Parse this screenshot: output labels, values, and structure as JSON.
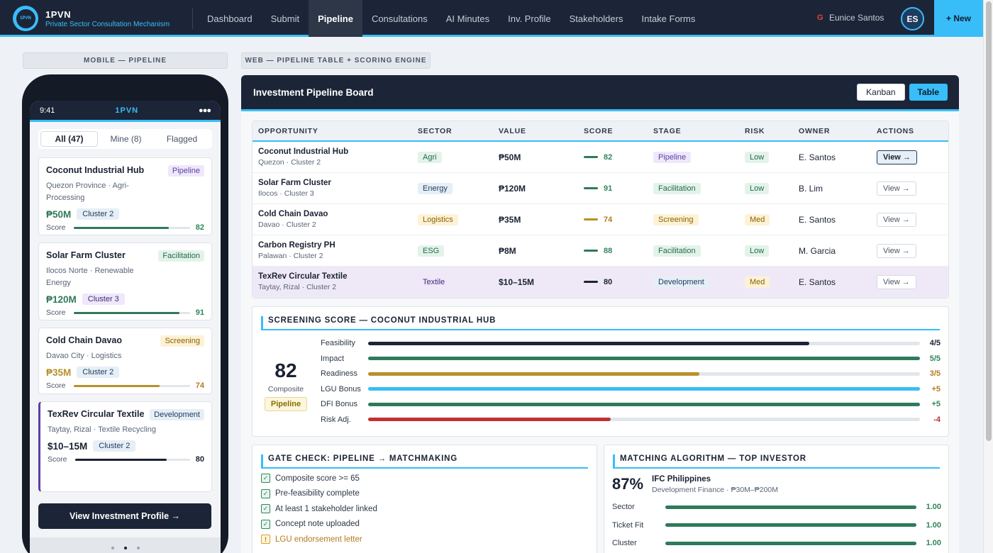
{
  "nav": {
    "logo_text": "1PVN",
    "brand": "1PVN",
    "subtitle": "Private Sector Consultation Mechanism",
    "links": [
      "Dashboard",
      "Submit",
      "Pipeline",
      "Consultations",
      "AI Minutes",
      "Inv. Profile",
      "Stakeholders",
      "Intake Forms"
    ],
    "active_link": "Pipeline",
    "user_name": "Eunice Santos",
    "avatar_initials": "ES",
    "new_button": "+ New"
  },
  "labels": {
    "mobile": "MOBILE — PIPELINE",
    "web": "WEB — PIPELINE TABLE + SCORING ENGINE"
  },
  "mobile": {
    "time": "9:41",
    "brand": "1PVN",
    "status_dots": "●●●",
    "tabs": [
      "All (47)",
      "Mine (8)",
      "Flagged"
    ],
    "score_label": "Score",
    "cards": [
      {
        "title": "Coconut Industrial Hub",
        "badge": "Pipeline",
        "sub": "Quezon Province · Agri-Processing",
        "value": "₱50M",
        "cluster": "Cluster 2",
        "score": 82
      },
      {
        "title": "Solar Farm Cluster",
        "badge": "Facilitation",
        "sub": "Ilocos Norte · Renewable Energy",
        "value": "₱120M",
        "cluster": "Cluster 3",
        "score": 91
      },
      {
        "title": "Cold Chain Davao",
        "badge": "Screening",
        "sub": "Davao City · Logistics",
        "value": "₱35M",
        "cluster": "Cluster 2",
        "score": 74
      },
      {
        "title": "TexRev Circular Textile",
        "badge": "Development",
        "sub": "Taytay, Rizal · Textile Recycling",
        "value": "$10–15M",
        "cluster": "Cluster 2",
        "score": 80
      }
    ],
    "cta": "View Investment Profile →"
  },
  "web": {
    "title": "Investment Pipeline Board",
    "view_kanban": "Kanban",
    "view_table": "Table",
    "columns": [
      "OPPORTUNITY",
      "SECTOR",
      "VALUE",
      "SCORE",
      "STAGE",
      "RISK",
      "OWNER",
      "ACTIONS"
    ],
    "rows": [
      {
        "name": "Coconut Industrial Hub",
        "loc": "Quezon · Cluster 2",
        "sector": "Agri",
        "value": "₱50M",
        "score": 82,
        "stage": "Pipeline",
        "risk": "Low",
        "owner": "E. Santos",
        "action": "View →"
      },
      {
        "name": "Solar Farm Cluster",
        "loc": "Ilocos · Cluster 3",
        "sector": "Energy",
        "value": "₱120M",
        "score": 91,
        "stage": "Facilitation",
        "risk": "Low",
        "owner": "B. Lim",
        "action": "View →"
      },
      {
        "name": "Cold Chain Davao",
        "loc": "Davao · Cluster 2",
        "sector": "Logistics",
        "value": "₱35M",
        "score": 74,
        "stage": "Screening",
        "risk": "Med",
        "owner": "E. Santos",
        "action": "View →"
      },
      {
        "name": "Carbon Registry PH",
        "loc": "Palawan · Cluster 2",
        "sector": "ESG",
        "value": "₱8M",
        "score": 88,
        "stage": "Facilitation",
        "risk": "Low",
        "owner": "M. Garcia",
        "action": "View →"
      },
      {
        "name": "TexRev Circular Textile",
        "loc": "Taytay, Rizal · Cluster 2",
        "sector": "Textile",
        "value": "$10–15M",
        "score": 80,
        "stage": "Development",
        "risk": "Med",
        "owner": "E. Santos",
        "action": "View →"
      }
    ]
  },
  "screening": {
    "title": "SCREENING SCORE — COCONUT INDUSTRIAL HUB",
    "composite": "82",
    "composite_label": "Composite",
    "stage": "Pipeline",
    "rows": [
      {
        "label": "Feasibility",
        "value": "4/5",
        "level": 0.8,
        "color": "#1c2537",
        "val_color": "#1a2233"
      },
      {
        "label": "Impact",
        "value": "5/5",
        "level": 1.0,
        "color": "#2f7a5a",
        "val_color": "#2f855a"
      },
      {
        "label": "Readiness",
        "value": "3/5",
        "level": 0.6,
        "color": "#b8902a",
        "val_color": "#b7791f"
      },
      {
        "label": "LGU Bonus",
        "value": "+5",
        "level": 1.0,
        "color": "#38bdf8",
        "val_color": "#b7791f"
      },
      {
        "label": "DFI Bonus",
        "value": "+5",
        "level": 1.0,
        "color": "#2f7a5a",
        "val_color": "#2f855a"
      },
      {
        "label": "Risk Adj.",
        "value": "-4",
        "level": 0.44,
        "color": "#c53030",
        "val_color": "#c53030"
      }
    ]
  },
  "gate": {
    "title": "GATE CHECK: PIPELINE → MATCHMAKING",
    "items": [
      {
        "label": "Composite score >= 65",
        "ok": true,
        "mark": "✓"
      },
      {
        "label": "Pre-feasibility complete",
        "ok": true,
        "mark": "✓"
      },
      {
        "label": "At least 1 stakeholder linked",
        "ok": true,
        "mark": "✓"
      },
      {
        "label": "Concept note uploaded",
        "ok": true,
        "mark": "✓"
      },
      {
        "label": "LGU endorsement letter",
        "ok": false,
        "mark": "!"
      }
    ]
  },
  "matching": {
    "title": "MATCHING ALGORITHM — TOP INVESTOR",
    "pct": "87%",
    "investor": "IFC Philippines",
    "investor_sub": "Development Finance · ₱30M–₱200M",
    "rows": [
      {
        "label": "Sector",
        "value": "1.00"
      },
      {
        "label": "Ticket Fit",
        "value": "1.00"
      },
      {
        "label": "Cluster",
        "value": "1.00"
      }
    ]
  }
}
